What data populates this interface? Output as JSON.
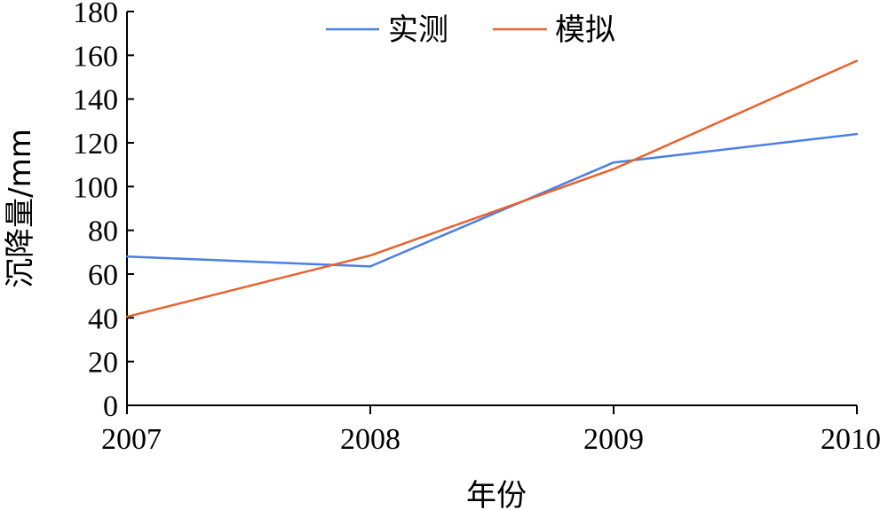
{
  "chart_data": {
    "type": "line",
    "title": "",
    "xlabel": "年份",
    "ylabel": "沉降量/mm",
    "categories": [
      "2007",
      "2008",
      "2009",
      "2010"
    ],
    "ylim": [
      0,
      180
    ],
    "yticks": [
      0,
      20,
      40,
      60,
      80,
      100,
      120,
      140,
      160,
      180
    ],
    "grid": false,
    "legend_position": "top-center",
    "series": [
      {
        "name": "实测",
        "color": "#4a7fe6",
        "values": [
          68,
          63.5,
          111,
          124
        ]
      },
      {
        "name": "模拟",
        "color": "#e8622c",
        "values": [
          40.5,
          68.5,
          108,
          157.5
        ]
      }
    ]
  }
}
